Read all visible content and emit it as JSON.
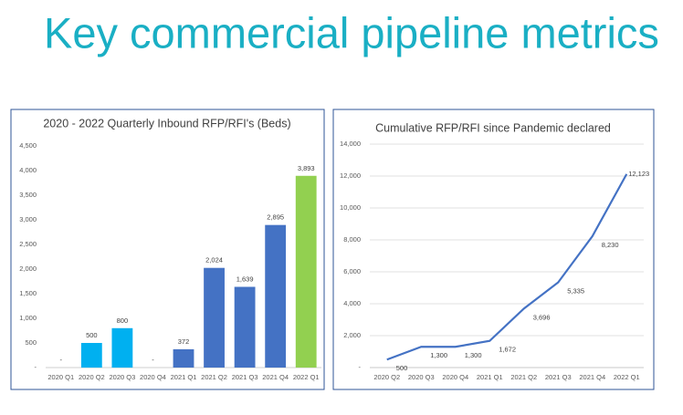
{
  "title": "Key commercial pipeline metrics",
  "chart_data": [
    {
      "type": "bar",
      "title": "2020 - 2022 Quarterly Inbound RFP/RFI's (Beds)",
      "categories": [
        "2020 Q1",
        "2020 Q2",
        "2020 Q3",
        "2020 Q4",
        "2021 Q1",
        "2021 Q2",
        "2021 Q3",
        "2021 Q4",
        "2022 Q1"
      ],
      "values": [
        0,
        500,
        800,
        0,
        372,
        2024,
        1639,
        2895,
        3893
      ],
      "value_labels": [
        "-",
        "500",
        "800",
        "-",
        "372",
        "2,024",
        "1,639",
        "2,895",
        "3,893"
      ],
      "colors": [
        "#00b0f0",
        "#00b0f0",
        "#00b0f0",
        "#00b0f0",
        "#4472c4",
        "#4472c4",
        "#4472c4",
        "#4472c4",
        "#92d050"
      ],
      "ylim": [
        0,
        4500
      ],
      "yticks": [
        {
          "value": 0,
          "label": "-"
        },
        500,
        {
          "value": 1000,
          "label": "1,000"
        },
        {
          "value": 1500,
          "label": "1,500"
        },
        {
          "value": 2000,
          "label": "2,000"
        },
        {
          "value": 2500,
          "label": "2,500"
        },
        {
          "value": 3000,
          "label": "3,000"
        },
        {
          "value": 3500,
          "label": "3,500"
        },
        {
          "value": 4000,
          "label": "4,000"
        },
        {
          "value": 4500,
          "label": "4,500"
        }
      ],
      "grid": false
    },
    {
      "type": "line",
      "title": "Cumulative RFP/RFI since Pandemic declared",
      "categories": [
        "2020 Q2",
        "2020 Q3",
        "2020 Q4",
        "2021 Q1",
        "2021 Q2",
        "2021 Q3",
        "2021 Q4",
        "2022 Q1"
      ],
      "values": [
        500,
        1300,
        1300,
        1672,
        3696,
        5335,
        8230,
        12123
      ],
      "value_labels": [
        "500",
        "1,300",
        "1,300",
        "1,672",
        "3,696",
        "5,335",
        "8,230",
        "12,123"
      ],
      "color": "#4472c4",
      "ylim": [
        0,
        14000
      ],
      "yticks": [
        {
          "value": 0,
          "label": "-"
        },
        {
          "value": 2000,
          "label": "2,000"
        },
        {
          "value": 4000,
          "label": "4,000"
        },
        {
          "value": 6000,
          "label": "6,000"
        },
        {
          "value": 8000,
          "label": "8,000"
        },
        {
          "value": 10000,
          "label": "10,000"
        },
        {
          "value": 12000,
          "label": "12,000"
        },
        {
          "value": 14000,
          "label": "14,000"
        }
      ],
      "grid": true
    }
  ]
}
